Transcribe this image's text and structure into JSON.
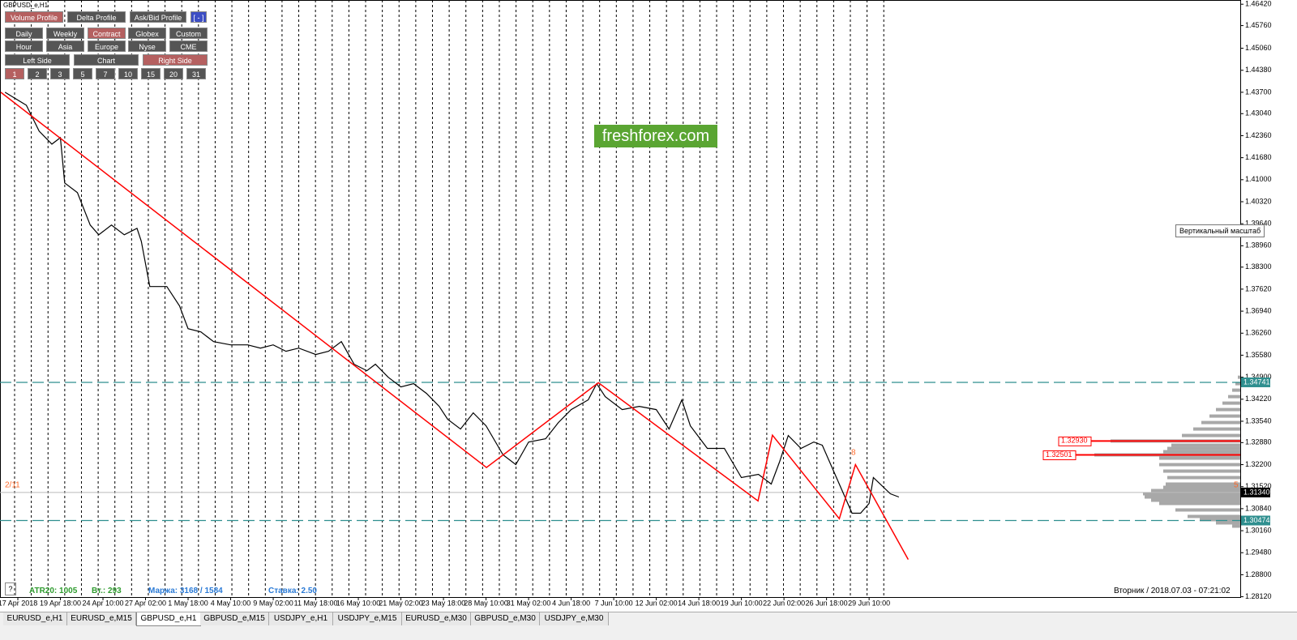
{
  "window": {
    "title": "GBPUSD_e,H1",
    "help": "?"
  },
  "buttons": [
    [
      {
        "label": "Volume Profile",
        "active": true
      },
      {
        "label": "Delta Profile",
        "active": false
      },
      {
        "label": "Ask/Bid Profile",
        "active": false
      },
      {
        "label": "[ - ]",
        "active": false,
        "style": "blue"
      }
    ],
    [
      {
        "label": "Daily",
        "active": false
      },
      {
        "label": "Weekly",
        "active": false
      },
      {
        "label": "Contract",
        "active": true
      },
      {
        "label": "Globex",
        "active": false
      },
      {
        "label": "Custom",
        "active": false
      }
    ],
    [
      {
        "label": "Hour",
        "active": false
      },
      {
        "label": "Asia",
        "active": false
      },
      {
        "label": "Europe",
        "active": false
      },
      {
        "label": "Nyse",
        "active": false
      },
      {
        "label": "CME",
        "active": false
      }
    ],
    [
      {
        "label": "Left Side",
        "active": false
      },
      {
        "label": "Chart",
        "active": false
      },
      {
        "label": "Right Side",
        "active": true
      }
    ],
    [
      {
        "label": "1",
        "active": true
      },
      {
        "label": "2",
        "active": false
      },
      {
        "label": "3",
        "active": false
      },
      {
        "label": "5",
        "active": false
      },
      {
        "label": "7",
        "active": false
      },
      {
        "label": "10",
        "active": false
      },
      {
        "label": "15",
        "active": false
      },
      {
        "label": "20",
        "active": false
      },
      {
        "label": "31",
        "active": false
      }
    ]
  ],
  "chart_data": {
    "type": "line",
    "color": "#000000",
    "xlim": [
      -0.419,
      28.72
    ],
    "ylim": [
      1.2811,
      1.4655
    ],
    "xticks": [
      {
        "value": 0,
        "label": "17 Apr 2018"
      },
      {
        "value": 1,
        "label": "19 Apr 18:00"
      },
      {
        "value": 2,
        "label": "24 Apr 10:00"
      },
      {
        "value": 3,
        "label": "27 Apr 02:00"
      },
      {
        "value": 4,
        "label": "1 May 18:00"
      },
      {
        "value": 5,
        "label": "4 May 10:00"
      },
      {
        "value": 6,
        "label": "9 May 02:00"
      },
      {
        "value": 7,
        "label": "11 May 18:00"
      },
      {
        "value": 8,
        "label": "16 May 10:00"
      },
      {
        "value": 9,
        "label": "21 May 02:00"
      },
      {
        "value": 10,
        "label": "23 May 18:00"
      },
      {
        "value": 11,
        "label": "28 May 10:00"
      },
      {
        "value": 12,
        "label": "31 May 02:00"
      },
      {
        "value": 13,
        "label": "4 Jun 18:00"
      },
      {
        "value": 14,
        "label": "7 Jun 10:00"
      },
      {
        "value": 15,
        "label": "12 Jun 02:00"
      },
      {
        "value": 16,
        "label": "14 Jun 18:00"
      },
      {
        "value": 17,
        "label": "19 Jun 10:00"
      },
      {
        "value": 18,
        "label": "22 Jun 02:00"
      },
      {
        "value": 19,
        "label": "26 Jun 18:00"
      },
      {
        "value": 20,
        "label": "29 Jun 10:00"
      }
    ],
    "yticks": [
      {
        "value": 1.4642,
        "label": "1.46420"
      },
      {
        "value": 1.4576,
        "label": "1.45760"
      },
      {
        "value": 1.4506,
        "label": "1.45060"
      },
      {
        "value": 1.4438,
        "label": "1.44380"
      },
      {
        "value": 1.437,
        "label": "1.43700"
      },
      {
        "value": 1.4304,
        "label": "1.43040"
      },
      {
        "value": 1.4236,
        "label": "1.42360"
      },
      {
        "value": 1.4168,
        "label": "1.41680"
      },
      {
        "value": 1.41,
        "label": "1.41000"
      },
      {
        "value": 1.4032,
        "label": "1.40320"
      },
      {
        "value": 1.3964,
        "label": "1.39640"
      },
      {
        "value": 1.3896,
        "label": "1.38960"
      },
      {
        "value": 1.383,
        "label": "1.38300"
      },
      {
        "value": 1.3762,
        "label": "1.37620"
      },
      {
        "value": 1.3694,
        "label": "1.36940"
      },
      {
        "value": 1.3626,
        "label": "1.36260"
      },
      {
        "value": 1.3558,
        "label": "1.35580"
      },
      {
        "value": 1.349,
        "label": "1.34900"
      },
      {
        "value": 1.3422,
        "label": "1.34220"
      },
      {
        "value": 1.3354,
        "label": "1.33540"
      },
      {
        "value": 1.3288,
        "label": "1.32880"
      },
      {
        "value": 1.322,
        "label": "1.32200"
      },
      {
        "value": 1.3152,
        "label": "1.31520"
      },
      {
        "value": 1.3084,
        "label": "1.30840"
      },
      {
        "value": 1.3016,
        "label": "1.30160"
      },
      {
        "value": 1.2948,
        "label": "1.29480"
      },
      {
        "value": 1.288,
        "label": "1.28800"
      },
      {
        "value": 1.2812,
        "label": "1.28120"
      }
    ],
    "x": [
      -0.3,
      0.2,
      0.5,
      0.8,
      1.0,
      1.1,
      1.4,
      1.7,
      1.9,
      2.2,
      2.5,
      2.8,
      2.9,
      3.1,
      3.5,
      3.8,
      4.0,
      4.3,
      4.6,
      5.0,
      5.4,
      5.7,
      6.0,
      6.3,
      6.6,
      7.0,
      7.3,
      7.6,
      7.9,
      8.2,
      8.4,
      8.7,
      9.0,
      9.3,
      9.6,
      9.9,
      10.1,
      10.4,
      10.7,
      11.0,
      11.4,
      11.7,
      12.0,
      12.4,
      12.7,
      13.0,
      13.4,
      13.6,
      13.8,
      14.2,
      14.6,
      15.0,
      15.3,
      15.6,
      15.8,
      16.2,
      16.6,
      17.0,
      17.4,
      17.7,
      17.9,
      18.1,
      18.4,
      18.7,
      18.9,
      19.2,
      19.6,
      19.8,
      20.0,
      20.1,
      20.5,
      20.7
    ],
    "values": [
      1.437,
      1.433,
      1.425,
      1.421,
      1.423,
      1.409,
      1.406,
      1.396,
      1.393,
      1.396,
      1.393,
      1.395,
      1.391,
      1.377,
      1.377,
      1.371,
      1.364,
      1.363,
      1.36,
      1.359,
      1.359,
      1.358,
      1.359,
      1.357,
      1.358,
      1.356,
      1.357,
      1.36,
      1.353,
      1.351,
      1.353,
      1.349,
      1.346,
      1.347,
      1.344,
      1.34,
      1.336,
      1.333,
      1.338,
      1.334,
      1.325,
      1.322,
      1.329,
      1.33,
      1.335,
      1.339,
      1.342,
      1.347,
      1.343,
      1.339,
      1.34,
      1.339,
      1.333,
      1.342,
      1.334,
      1.327,
      1.327,
      1.318,
      1.319,
      1.316,
      1.323,
      1.331,
      1.327,
      1.329,
      1.328,
      1.319,
      1.307,
      1.307,
      1.31,
      1.318,
      1.313,
      1.312
    ],
    "trendline": {
      "color": "#ff0000",
      "x": [
        -0.4,
        11.01,
        13.64,
        17.39,
        17.73,
        19.3,
        19.68,
        20.92
      ],
      "values": [
        1.437,
        1.3211,
        1.3473,
        1.3108,
        1.3311,
        1.3053,
        1.322,
        1.2927
      ]
    },
    "levels": {
      "color": "#2f8f8f",
      "items": [
        {
          "value": 1.34741,
          "label": "1.34741"
        },
        {
          "value": 1.30474,
          "label": "1.30474"
        }
      ]
    },
    "current_price": {
      "value": 1.3134,
      "label": "1.31340"
    },
    "profile_marks": {
      "color": "#ff0000",
      "items": [
        {
          "value": 1.3293,
          "label": "1.32930"
        },
        {
          "value": 1.32501,
          "label": "1.32501"
        }
      ]
    },
    "volume_profile": {
      "color": "#a8a8a8",
      "max_volume": 180,
      "prices": [
        1.349,
        1.347,
        1.345,
        1.343,
        1.341,
        1.339,
        1.337,
        1.335,
        1.333,
        1.331,
        1.3293,
        1.328,
        1.327,
        1.326,
        1.32501,
        1.324,
        1.322,
        1.32,
        1.318,
        1.316,
        1.315,
        1.314,
        1.313,
        1.312,
        1.311,
        1.31,
        1.308,
        1.306,
        1.305,
        1.304,
        1.303
      ],
      "volumes": [
        3,
        6,
        10,
        15,
        22,
        30,
        38,
        48,
        58,
        72,
        160,
        85,
        90,
        95,
        180,
        100,
        100,
        95,
        90,
        92,
        95,
        110,
        120,
        118,
        110,
        100,
        80,
        65,
        50,
        30,
        10
      ]
    },
    "annotations": {
      "color": "#ff6a2a",
      "left": "2/11",
      "right": "5",
      "peak": "8"
    }
  },
  "tooltip": "Вертикальный масштаб",
  "watermark": "freshforex.com",
  "status": {
    "atr": "ATR20: 1005",
    "volume": "Вт.: 293",
    "margin": "Маржа: 3168 / 1584",
    "rate": "Ставка: 2.50",
    "time": "Вторник  /  2018.07.03 - 07:21:02"
  },
  "tabs": [
    {
      "label": "EURUSD_e,H1",
      "active": false
    },
    {
      "label": "EURUSD_e,M15",
      "active": false
    },
    {
      "label": "GBPUSD_e,H1",
      "active": true
    },
    {
      "label": "GBPUSD_e,M15",
      "active": false
    },
    {
      "label": "USDJPY_e,H1",
      "active": false
    },
    {
      "label": "USDJPY_e,M15",
      "active": false
    },
    {
      "label": "EURUSD_e,M30",
      "active": false
    },
    {
      "label": "GBPUSD_e,M30",
      "active": false
    },
    {
      "label": "USDJPY_e,M30",
      "active": false
    }
  ]
}
